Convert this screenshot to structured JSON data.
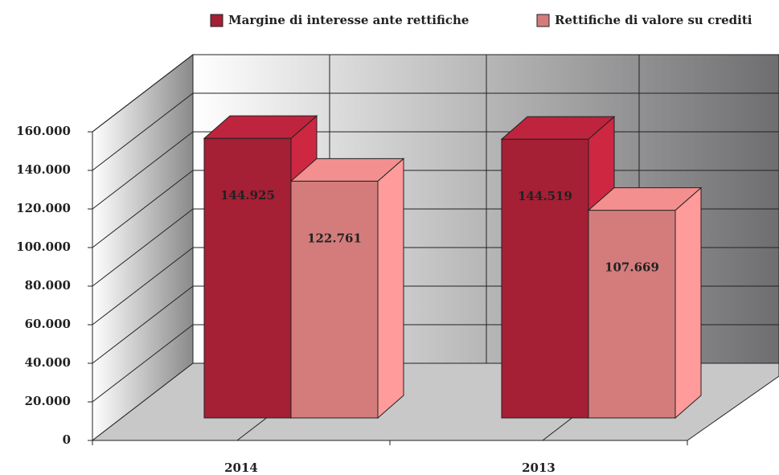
{
  "chart_data": {
    "type": "bar3d",
    "categories": [
      "2014",
      "2013"
    ],
    "series": [
      {
        "name": "Margine di interesse ante rettifiche",
        "color": "#a51f35",
        "values": [
          144925,
          144519
        ],
        "value_labels": [
          "144.925",
          "144.519"
        ]
      },
      {
        "name": "Rettifiche di valore su crediti",
        "color": "#d47c7c",
        "values": [
          122761,
          107669
        ],
        "value_labels": [
          "122.761",
          "107.669"
        ]
      }
    ],
    "ylim": [
      0,
      160000
    ],
    "yticks": [
      0,
      {
        "value": 20000,
        "label": "20.000"
      },
      {
        "value": 40000,
        "label": "40.000"
      },
      {
        "value": 60000,
        "label": "60.000"
      },
      {
        "value": 80000,
        "label": "80.000"
      },
      {
        "value": 100000,
        "label": "100.000"
      },
      {
        "value": 120000,
        "label": "120.000"
      },
      {
        "value": 140000,
        "label": "140.000"
      },
      {
        "value": 160000,
        "label": "160.000"
      }
    ],
    "grid": true,
    "legend": "top"
  }
}
